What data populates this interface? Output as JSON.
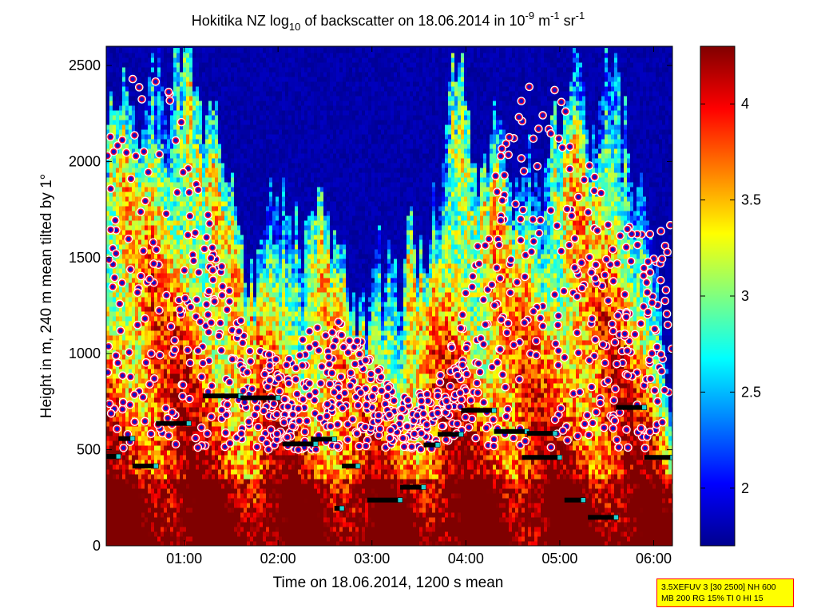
{
  "chart_data": {
    "type": "heatmap",
    "title": {
      "prefix": "Hokitika NZ log",
      "sub": "10",
      "middle": " of backscatter on 18.06.2014 in 10",
      "sup1": "-9",
      "m_unit": " m",
      "sup2": "-1",
      "sr_unit": " sr",
      "sup3": "-1"
    },
    "xlabel": "Time on 18.06.2014, 1200 s mean",
    "ylabel": "Height in m, 240 m mean tilted by 1°",
    "x_range_hours": [
      0.17,
      6.2
    ],
    "ylim": [
      0,
      2600
    ],
    "x_ticks": [
      {
        "hour": 1,
        "label": "01:00"
      },
      {
        "hour": 2,
        "label": "02:00"
      },
      {
        "hour": 3,
        "label": "03:00"
      },
      {
        "hour": 4,
        "label": "04:00"
      },
      {
        "hour": 5,
        "label": "05:00"
      },
      {
        "hour": 6,
        "label": "06:00"
      }
    ],
    "y_ticks": [
      0,
      500,
      1000,
      1500,
      2000,
      2500
    ],
    "y_tick_labels": [
      "0",
      "500",
      "1000",
      "1500",
      "2000",
      "2500"
    ],
    "colormap": "jet",
    "colorbar": {
      "range": [
        1.7,
        4.3
      ],
      "ticks": [
        2,
        2.5,
        3,
        3.5,
        4
      ],
      "tick_labels": [
        "2",
        "2.5",
        "3",
        "3.5",
        "4"
      ]
    },
    "cloud_base_segments": [
      {
        "t0": 0.17,
        "t1": 0.3,
        "h": 465
      },
      {
        "t0": 0.3,
        "t1": 0.45,
        "h": 558
      },
      {
        "t0": 0.45,
        "t1": 0.7,
        "h": 415
      },
      {
        "t0": 0.7,
        "t1": 1.05,
        "h": 637
      },
      {
        "t0": 1.2,
        "t1": 1.6,
        "h": 780
      },
      {
        "t0": 1.6,
        "t1": 2.0,
        "h": 770
      },
      {
        "t0": 2.05,
        "t1": 2.4,
        "h": 530
      },
      {
        "t0": 2.35,
        "t1": 2.6,
        "h": 555
      },
      {
        "t0": 2.6,
        "t1": 2.68,
        "h": 195
      },
      {
        "t0": 2.68,
        "t1": 2.85,
        "h": 415
      },
      {
        "t0": 2.95,
        "t1": 3.3,
        "h": 238
      },
      {
        "t0": 3.3,
        "t1": 3.55,
        "h": 305
      },
      {
        "t0": 3.55,
        "t1": 3.7,
        "h": 525
      },
      {
        "t0": 3.7,
        "t1": 3.95,
        "h": 580
      },
      {
        "t0": 3.95,
        "t1": 4.3,
        "h": 705
      },
      {
        "t0": 4.3,
        "t1": 4.65,
        "h": 595
      },
      {
        "t0": 4.65,
        "t1": 4.95,
        "h": 585
      },
      {
        "t0": 4.6,
        "t1": 5.0,
        "h": 460
      },
      {
        "t0": 5.05,
        "t1": 5.25,
        "h": 238
      },
      {
        "t0": 5.3,
        "t1": 5.6,
        "h": 148
      },
      {
        "t0": 5.6,
        "t1": 5.9,
        "h": 720
      },
      {
        "t0": 5.9,
        "t1": 6.2,
        "h": 460
      }
    ],
    "cloud_top_markers_count": 900
  },
  "settings_box": {
    "line1": "3.5XEFUV 3 [30 2500] NH 600",
    "line2": "MB 200 RG 15% TI 0 HI 15"
  }
}
